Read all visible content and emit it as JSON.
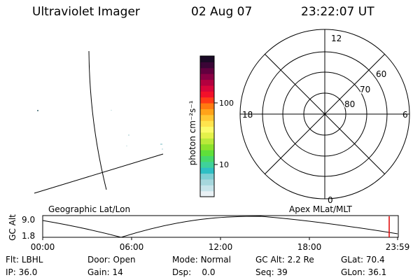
{
  "header": {
    "instrument": "Ultraviolet Imager",
    "date": "02 Aug 07",
    "time": "23:22:07 UT"
  },
  "colorbar": {
    "unit_label": "photon cm⁻²s⁻¹",
    "ticks": [
      "100",
      "10"
    ],
    "colors": [
      "#e9f1f5",
      "#c7e4ea",
      "#a6d7dd",
      "#7fcfd3",
      "#2fbfc4",
      "#3fd19a",
      "#46d96a",
      "#5fe03a",
      "#8be22c",
      "#b9ea3a",
      "#e4f24a",
      "#fbfb6a",
      "#ffe44d",
      "#ffc733",
      "#ffa319",
      "#ff7a10",
      "#ff3b16",
      "#f2102a",
      "#d8053a",
      "#b3003f",
      "#8a0044",
      "#62003f",
      "#3a0536",
      "#1a0a26"
    ]
  },
  "map_labels": {
    "left": "Geographic Lat/Lon",
    "right": "Apex MLat/MLT"
  },
  "polar": {
    "mlt_labels": {
      "top": "12",
      "left": "18",
      "right": "6",
      "bottom": "0"
    },
    "lat_labels": [
      "60",
      "70",
      "80"
    ]
  },
  "timeline": {
    "ylabel": "GC Alt",
    "y_max": "9.0",
    "y_min": "1.8",
    "x_ticks": [
      "00:00",
      "06:00",
      "12:00",
      "18:00",
      "23:59"
    ]
  },
  "footer": {
    "filter_label": "Flt:",
    "filter_value": "LBHL",
    "ip_label": "IP:",
    "ip_value": "36.0",
    "door_label": "Door:",
    "door_value": "Open",
    "gain_label": "Gain:",
    "gain_value": "14",
    "mode_label": "Mode:",
    "mode_value": "Normal",
    "dsp_label": "Dsp:",
    "dsp_value": "0.0",
    "gcalt_label": "GC Alt:",
    "gcalt_value": "2.2 Re",
    "seq_label": "Seq:",
    "seq_value": "39",
    "glat_label": "GLat:",
    "glat_value": "70.4",
    "glon_label": "GLon:",
    "glon_value": "36.1"
  }
}
